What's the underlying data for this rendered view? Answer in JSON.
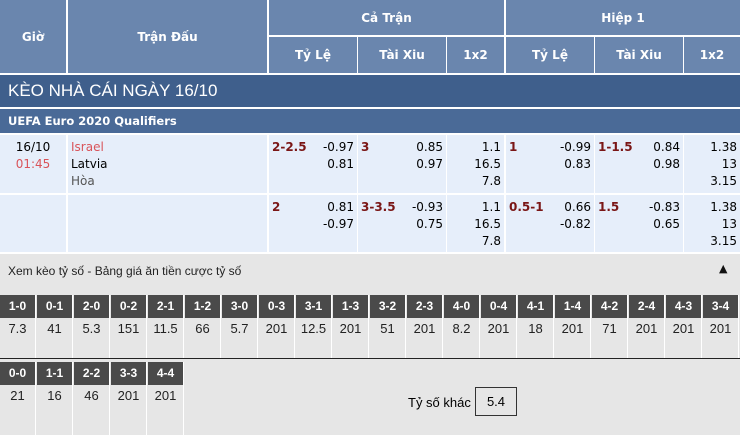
{
  "header": {
    "gio": "Giờ",
    "tran_dau": "Trận Đấu",
    "ca_tran": "Cả Trận",
    "hiep1": "Hiệp 1",
    "ty_le": "Tỷ Lệ",
    "tai_xiu": "Tài Xiu",
    "x12": "1x2"
  },
  "title": "KÈO NHÀ CÁI NGÀY 16/10",
  "league": "UEFA Euro 2020 Qualifiers",
  "match": {
    "date": "16/10",
    "time": "01:45",
    "home": "Israel",
    "away": "Latvia",
    "draw": "Hòa"
  },
  "rows": [
    {
      "ft_hcap": "2-2.5",
      "ft_hcap_o1": "-0.97",
      "ft_hcap_o2": "0.81",
      "ft_ou": "3",
      "ft_ou_o1": "0.85",
      "ft_ou_o2": "0.97",
      "ft_1": "1.1",
      "ft_2": "16.5",
      "ft_x": "7.8",
      "h1_hcap": "1",
      "h1_hcap_o1": "-0.99",
      "h1_hcap_o2": "0.83",
      "h1_ou": "1-1.5",
      "h1_ou_o1": "0.84",
      "h1_ou_o2": "0.98",
      "h1_1": "1.38",
      "h1_2": "13",
      "h1_x": "3.15"
    },
    {
      "ft_hcap": "2",
      "ft_hcap_o1": "0.81",
      "ft_hcap_o2": "-0.97",
      "ft_ou": "3-3.5",
      "ft_ou_o1": "-0.93",
      "ft_ou_o2": "0.75",
      "ft_1": "1.1",
      "ft_2": "16.5",
      "ft_x": "7.8",
      "h1_hcap": "0.5-1",
      "h1_hcap_o1": "0.66",
      "h1_hcap_o2": "-0.82",
      "h1_ou": "1.5",
      "h1_ou_o1": "-0.83",
      "h1_ou_o2": "0.65",
      "h1_1": "1.38",
      "h1_2": "13",
      "h1_x": "3.15"
    }
  ],
  "scores": {
    "title": "Xem kèo tỷ số - Bảng giá ăn tiền cược tỷ số",
    "collapse_icon": "triangle-up",
    "row1": [
      [
        "1-0",
        "7.3"
      ],
      [
        "0-1",
        "41"
      ],
      [
        "2-0",
        "5.3"
      ],
      [
        "0-2",
        "151"
      ],
      [
        "2-1",
        "11.5"
      ],
      [
        "1-2",
        "66"
      ],
      [
        "3-0",
        "5.7"
      ],
      [
        "0-3",
        "201"
      ],
      [
        "3-1",
        "12.5"
      ],
      [
        "1-3",
        "201"
      ],
      [
        "3-2",
        "51"
      ],
      [
        "2-3",
        "201"
      ],
      [
        "4-0",
        "8.2"
      ],
      [
        "0-4",
        "201"
      ],
      [
        "4-1",
        "18"
      ],
      [
        "1-4",
        "201"
      ],
      [
        "4-2",
        "71"
      ],
      [
        "2-4",
        "201"
      ],
      [
        "4-3",
        "201"
      ],
      [
        "3-4",
        "201"
      ]
    ],
    "row2": [
      [
        "0-0",
        "21"
      ],
      [
        "1-1",
        "16"
      ],
      [
        "2-2",
        "46"
      ],
      [
        "3-3",
        "201"
      ],
      [
        "4-4",
        "201"
      ]
    ],
    "other_label": "Tỷ số khác",
    "other_value": "5.4"
  }
}
